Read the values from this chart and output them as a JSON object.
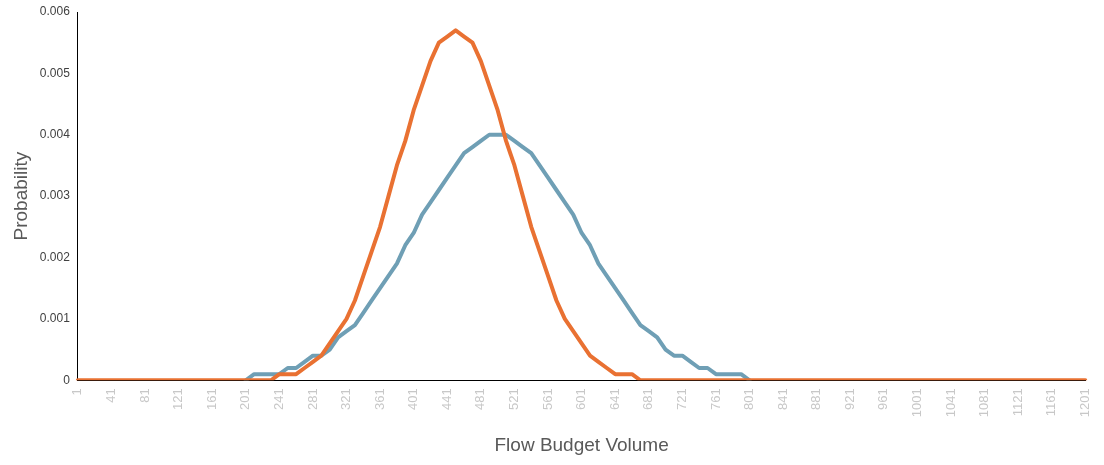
{
  "chart_data": {
    "type": "line",
    "xlabel": "Flow Budget Volume",
    "ylabel": "Probability",
    "categories": [
      "1",
      null,
      null,
      null,
      "41",
      null,
      null,
      null,
      "81",
      null,
      null,
      null,
      "121",
      null,
      null,
      null,
      "161",
      null,
      null,
      null,
      "201",
      null,
      null,
      null,
      "241",
      null,
      null,
      null,
      "281",
      null,
      null,
      null,
      "321",
      null,
      null,
      null,
      "361",
      null,
      null,
      null,
      "401",
      null,
      null,
      null,
      "441",
      null,
      null,
      null,
      "481",
      null,
      null,
      null,
      "521",
      null,
      null,
      null,
      "561",
      null,
      null,
      null,
      "601",
      null,
      null,
      null,
      "641",
      null,
      null,
      null,
      "681",
      null,
      null,
      null,
      "721",
      null,
      null,
      null,
      "761",
      null,
      null,
      null,
      "801",
      null,
      null,
      null,
      "841",
      null,
      null,
      null,
      "881",
      null,
      null,
      null,
      "921",
      null,
      null,
      null,
      "961",
      null,
      null,
      null,
      "1001",
      null,
      null,
      null,
      "1041",
      null,
      null,
      null,
      "1081",
      null,
      null,
      null,
      "1121",
      null,
      null,
      null,
      "1161",
      null,
      null,
      null,
      "1201"
    ],
    "series": [
      {
        "color": "#6f9fb5",
        "values": [
          null,
          null,
          null,
          null,
          null,
          null,
          null,
          null,
          null,
          null,
          null,
          null,
          null,
          null,
          null,
          null,
          null,
          null,
          null,
          null,
          0,
          0.0001,
          0.0001,
          0.0001,
          0.0001,
          0.0002,
          0.0002,
          0.0003,
          0.0004,
          0.0004,
          0.0005,
          0.0007,
          0.0008,
          0.0009,
          0.0011,
          0.0013,
          0.0015,
          0.0017,
          0.0019,
          0.0022,
          0.0024,
          0.0027,
          0.0029,
          0.0031,
          0.0033,
          0.0035,
          0.0037,
          0.0038,
          0.0039,
          0.004,
          0.004,
          0.004,
          0.0039,
          0.0038,
          0.0037,
          0.0035,
          0.0033,
          0.0031,
          0.0029,
          0.0027,
          0.0024,
          0.0022,
          0.0019,
          0.0017,
          0.0015,
          0.0013,
          0.0011,
          0.0009,
          0.0008,
          0.0007,
          0.0005,
          0.0004,
          0.0004,
          0.0003,
          0.0002,
          0.0002,
          0.0001,
          0.0001,
          0.0001,
          0.0001,
          0,
          null,
          null,
          null,
          null,
          null,
          null,
          null,
          null,
          null,
          null,
          null,
          null,
          null,
          null,
          null,
          null,
          null,
          null,
          null,
          null,
          null,
          null,
          null,
          null,
          null,
          null,
          null,
          null,
          null,
          null,
          null,
          null,
          null,
          null,
          null,
          null,
          null,
          null,
          null,
          null
        ]
      },
      {
        "color": "#e97132",
        "values": [
          0,
          0,
          0,
          0,
          0,
          0,
          0,
          0,
          0,
          0,
          0,
          0,
          0,
          0,
          0,
          0,
          0,
          0,
          0,
          0,
          0,
          0,
          0,
          0,
          0.0001,
          0.0001,
          0.0001,
          0.0002,
          0.0003,
          0.0004,
          0.0006,
          0.0008,
          0.001,
          0.0013,
          0.0017,
          0.0021,
          0.0025,
          0.003,
          0.0035,
          0.0039,
          0.0044,
          0.0048,
          0.0052,
          0.0055,
          0.0056,
          0.0057,
          0.0056,
          0.0055,
          0.0052,
          0.0048,
          0.0044,
          0.0039,
          0.0035,
          0.003,
          0.0025,
          0.0021,
          0.0017,
          0.0013,
          0.001,
          0.0008,
          0.0006,
          0.0004,
          0.0003,
          0.0002,
          0.0001,
          0.0001,
          0.0001,
          0,
          0,
          0,
          0,
          0,
          0,
          0,
          0,
          0,
          0,
          0,
          0,
          0,
          0,
          0,
          0,
          0,
          0,
          0,
          0,
          0,
          0,
          0,
          0,
          0,
          0,
          0,
          0,
          0,
          0,
          0,
          0,
          0,
          0,
          0,
          0,
          0,
          0,
          0,
          0,
          0,
          0,
          0,
          0,
          0,
          0,
          0,
          0,
          0,
          0,
          0,
          0,
          0,
          0
        ]
      }
    ],
    "ylim": [
      0,
      0.006
    ],
    "yticks": [
      0,
      0.001,
      0.002,
      0.003,
      0.004,
      0.005,
      0.006
    ],
    "grid": false,
    "legend": false,
    "marker": "none",
    "line_style": "solid"
  }
}
